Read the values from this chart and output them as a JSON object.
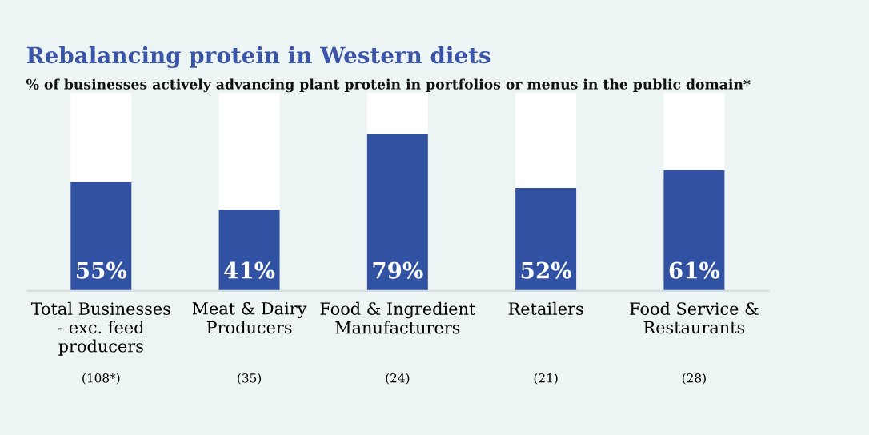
{
  "chart_data": {
    "type": "bar",
    "title": "Rebalancing protein in Western diets",
    "subtitle": "% of businesses actively advancing plant protein in portfolios or menus in the public domain*",
    "categories": [
      "Total Businesses\n- exc. feed\nproducers",
      "Meat & Dairy\nProducers",
      "Food & Ingredient\nManufacturers",
      "Retailers",
      "Food Service &\nRestaurants"
    ],
    "stacked": true,
    "series": [
      {
        "color": "#3152a3",
        "values": [
          55,
          41,
          79,
          52,
          61
        ],
        "value_labels": [
          "55%",
          "41%",
          "79%",
          "52%",
          "61%"
        ]
      },
      {
        "color": "#ffffff",
        "values": [
          45,
          59,
          21,
          48,
          39
        ]
      }
    ],
    "ylim": [
      0,
      100
    ],
    "tick_labels": "x",
    "grid": false,
    "legend": false,
    "annotations": [
      "(108*)",
      "(35)",
      "(24)",
      "(21)",
      "(28)"
    ]
  }
}
